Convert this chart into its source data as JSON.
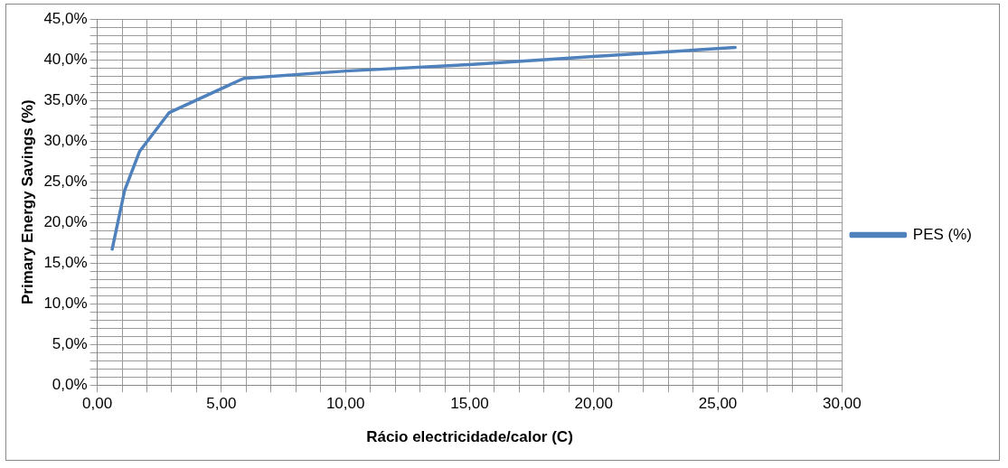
{
  "chart_data": {
    "type": "line",
    "xlabel": "Rácio electricidade/calor (C)",
    "ylabel": "Primary Energy Savings (%)",
    "x": [
      0.6,
      1.1,
      1.7,
      2.9,
      5.9,
      10,
      15,
      20,
      25.7
    ],
    "series": [
      {
        "name": "PES (%)",
        "color": "#4f81bd",
        "values": [
          16.7,
          23.9,
          28.7,
          33.5,
          37.7,
          38.6,
          39.4,
          40.4,
          41.5
        ]
      }
    ],
    "xlim": [
      0,
      30
    ],
    "ylim": [
      0,
      45
    ],
    "xticks": [
      {
        "value": 0,
        "label": "0,00"
      },
      {
        "value": 1,
        "label": null
      },
      {
        "value": 2,
        "label": null
      },
      {
        "value": 3,
        "label": null
      },
      {
        "value": 4,
        "label": null
      },
      {
        "value": 5,
        "label": "5,00"
      },
      {
        "value": 6,
        "label": null
      },
      {
        "value": 7,
        "label": null
      },
      {
        "value": 8,
        "label": null
      },
      {
        "value": 9,
        "label": null
      },
      {
        "value": 10,
        "label": "10,00"
      },
      {
        "value": 11,
        "label": null
      },
      {
        "value": 12,
        "label": null
      },
      {
        "value": 13,
        "label": null
      },
      {
        "value": 14,
        "label": null
      },
      {
        "value": 15,
        "label": "15,00"
      },
      {
        "value": 16,
        "label": null
      },
      {
        "value": 17,
        "label": null
      },
      {
        "value": 18,
        "label": null
      },
      {
        "value": 19,
        "label": null
      },
      {
        "value": 20,
        "label": "20,00"
      },
      {
        "value": 21,
        "label": null
      },
      {
        "value": 22,
        "label": null
      },
      {
        "value": 23,
        "label": null
      },
      {
        "value": 24,
        "label": null
      },
      {
        "value": 25,
        "label": "25,00"
      },
      {
        "value": 26,
        "label": null
      },
      {
        "value": 27,
        "label": null
      },
      {
        "value": 28,
        "label": null
      },
      {
        "value": 29,
        "label": null
      },
      {
        "value": 30,
        "label": "30,00"
      }
    ],
    "yticks": [
      {
        "value": 0,
        "label": "0,0%"
      },
      {
        "value": 1,
        "label": null
      },
      {
        "value": 2,
        "label": null
      },
      {
        "value": 3,
        "label": null
      },
      {
        "value": 4,
        "label": null
      },
      {
        "value": 5,
        "label": "5,0%"
      },
      {
        "value": 6,
        "label": null
      },
      {
        "value": 7,
        "label": null
      },
      {
        "value": 8,
        "label": null
      },
      {
        "value": 9,
        "label": null
      },
      {
        "value": 10,
        "label": "10,0%"
      },
      {
        "value": 11,
        "label": null
      },
      {
        "value": 12,
        "label": null
      },
      {
        "value": 13,
        "label": null
      },
      {
        "value": 14,
        "label": null
      },
      {
        "value": 15,
        "label": "15,0%"
      },
      {
        "value": 16,
        "label": null
      },
      {
        "value": 17,
        "label": null
      },
      {
        "value": 18,
        "label": null
      },
      {
        "value": 19,
        "label": null
      },
      {
        "value": 20,
        "label": "20,0%"
      },
      {
        "value": 21,
        "label": null
      },
      {
        "value": 22,
        "label": null
      },
      {
        "value": 23,
        "label": null
      },
      {
        "value": 24,
        "label": null
      },
      {
        "value": 25,
        "label": "25,0%"
      },
      {
        "value": 26,
        "label": null
      },
      {
        "value": 27,
        "label": null
      },
      {
        "value": 28,
        "label": null
      },
      {
        "value": 29,
        "label": null
      },
      {
        "value": 30,
        "label": "30,0%"
      },
      {
        "value": 31,
        "label": null
      },
      {
        "value": 32,
        "label": null
      },
      {
        "value": 33,
        "label": null
      },
      {
        "value": 34,
        "label": null
      },
      {
        "value": 35,
        "label": "35,0%"
      },
      {
        "value": 36,
        "label": null
      },
      {
        "value": 37,
        "label": null
      },
      {
        "value": 38,
        "label": null
      },
      {
        "value": 39,
        "label": null
      },
      {
        "value": 40,
        "label": "40,0%"
      },
      {
        "value": 41,
        "label": null
      },
      {
        "value": 42,
        "label": null
      },
      {
        "value": 43,
        "label": null
      },
      {
        "value": 44,
        "label": null
      },
      {
        "value": 45,
        "label": "45,0%"
      }
    ],
    "grid": true,
    "legend": "right",
    "marker": "none",
    "line_style": "solid"
  }
}
